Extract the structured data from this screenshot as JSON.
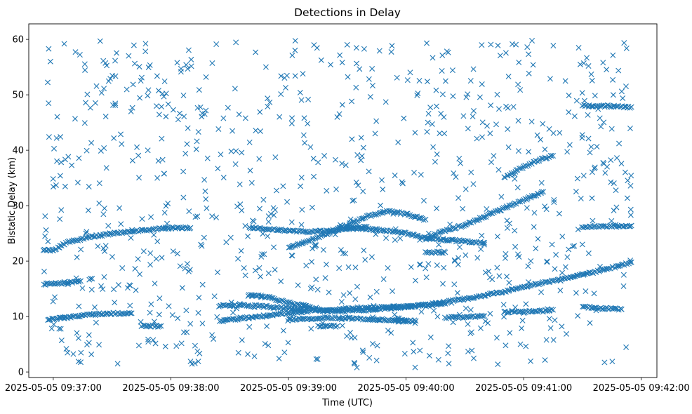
{
  "chart_data": {
    "type": "scatter",
    "title": "Detections in Delay",
    "xlabel": "Time (UTC)",
    "ylabel": "Bistatic Delay (km)",
    "x_unit": "seconds after 2025-05-05 09:37:00",
    "x_ticks": [
      {
        "value": 0,
        "label": "2025-05-05 09:37:00"
      },
      {
        "value": 60,
        "label": "2025-05-05 09:38:00"
      },
      {
        "value": 120,
        "label": "2025-05-05 09:39:00"
      },
      {
        "value": 180,
        "label": "2025-05-05 09:40:00"
      },
      {
        "value": 240,
        "label": "2025-05-05 09:41:00"
      },
      {
        "value": 300,
        "label": "2025-05-05 09:42:00"
      }
    ],
    "y_ticks": [
      {
        "value": 0,
        "label": "0"
      },
      {
        "value": 10,
        "label": "10"
      },
      {
        "value": 20,
        "label": "20"
      },
      {
        "value": 30,
        "label": "30"
      },
      {
        "value": 40,
        "label": "40"
      },
      {
        "value": 50,
        "label": "50"
      },
      {
        "value": 60,
        "label": "60"
      }
    ],
    "xlim": [
      -12.5,
      308
    ],
    "ylim": [
      -1,
      62.8
    ],
    "marker": "x",
    "color": "#1f77b4",
    "grid": false,
    "legend": "none",
    "tracks": [
      {
        "x": [
          -5,
          0,
          8,
          12,
          18,
          30,
          45,
          60,
          66,
          70
        ],
        "y": [
          22.0,
          22.0,
          23.5,
          23.8,
          24.3,
          25.0,
          25.5,
          26.0,
          26.0,
          26.0
        ]
      },
      {
        "x": [
          -5,
          0,
          5,
          10,
          12,
          14
        ],
        "y": [
          15.8,
          16.0,
          16.0,
          16.2,
          16.3,
          16.4
        ]
      },
      {
        "x": [
          -3,
          0,
          5,
          12,
          18,
          25,
          35,
          40
        ],
        "y": [
          9.5,
          9.6,
          9.8,
          10.0,
          10.3,
          10.5,
          10.6,
          10.6
        ]
      },
      {
        "x": [
          45,
          48,
          55
        ],
        "y": [
          8.3,
          8.3,
          8.3
        ]
      },
      {
        "x": [
          85,
          100,
          120,
          140,
          160,
          180,
          200,
          220,
          240,
          260,
          280,
          295
        ],
        "y": [
          12.0,
          12.0,
          11.5,
          11.0,
          11.2,
          11.7,
          12.6,
          13.8,
          15.3,
          16.8,
          18.3,
          19.8
        ]
      },
      {
        "x": [
          100,
          110,
          120,
          130,
          140
        ],
        "y": [
          14.0,
          13.4,
          12.5,
          11.8,
          11.0
        ]
      },
      {
        "x": [
          85,
          90,
          100,
          110,
          120,
          130
        ],
        "y": [
          9.2,
          9.4,
          9.8,
          10.2,
          10.6,
          11.0
        ]
      },
      {
        "x": [
          140,
          150,
          160,
          170,
          180,
          190,
          200
        ],
        "y": [
          11.0,
          11.4,
          11.6,
          11.7,
          11.8,
          12.0,
          12.3
        ]
      },
      {
        "x": [
          120,
          130,
          140,
          150,
          160,
          170,
          180
        ],
        "y": [
          9.5,
          9.6,
          9.8,
          9.7,
          9.5,
          9.4,
          9.3
        ]
      },
      {
        "x": [
          200,
          210,
          220
        ],
        "y": [
          9.8,
          9.9,
          10.1
        ]
      },
      {
        "x": [
          230,
          240,
          250,
          255
        ],
        "y": [
          10.8,
          10.9,
          11.0,
          11.2
        ]
      },
      {
        "x": [
          270,
          280,
          290
        ],
        "y": [
          11.8,
          11.5,
          11.3
        ]
      },
      {
        "x": [
          175,
          180,
          185
        ],
        "y": [
          9.2,
          9.2,
          9.2
        ]
      },
      {
        "x": [
          135,
          145
        ],
        "y": [
          8.3,
          8.3
        ]
      },
      {
        "x": [
          100,
          110,
          120,
          130,
          140,
          150,
          160
        ],
        "y": [
          26.0,
          25.8,
          25.5,
          25.3,
          25.5,
          25.8,
          26.2
        ]
      },
      {
        "x": [
          120,
          130,
          140,
          150,
          160,
          170,
          180,
          190
        ],
        "y": [
          22.5,
          23.5,
          25.0,
          26.5,
          28.0,
          29.0,
          28.5,
          27.5
        ]
      },
      {
        "x": [
          150,
          160,
          170,
          180,
          190,
          200
        ],
        "y": [
          26.0,
          25.8,
          25.5,
          25.0,
          24.2,
          23.8
        ]
      },
      {
        "x": [
          190,
          200,
          210,
          220,
          230,
          240,
          250
        ],
        "y": [
          24.0,
          25.5,
          26.5,
          28.0,
          29.5,
          31.0,
          32.5
        ]
      },
      {
        "x": [
          200,
          210,
          220
        ],
        "y": [
          23.8,
          23.6,
          23.3
        ]
      },
      {
        "x": [
          190,
          195,
          200
        ],
        "y": [
          21.6,
          21.6,
          21.6
        ]
      },
      {
        "x": [
          270,
          280,
          290,
          295
        ],
        "y": [
          26.2,
          26.3,
          26.3,
          26.4
        ]
      },
      {
        "x": [
          270,
          280,
          295
        ],
        "y": [
          48.0,
          48.0,
          47.8
        ]
      },
      {
        "x": [
          230,
          240,
          250,
          255
        ],
        "y": [
          35.0,
          37.0,
          38.5,
          39.0
        ]
      }
    ],
    "random_points": {
      "count": 850,
      "x_range": [
        -5,
        295
      ],
      "y_range": [
        0.8,
        59.8
      ]
    }
  }
}
